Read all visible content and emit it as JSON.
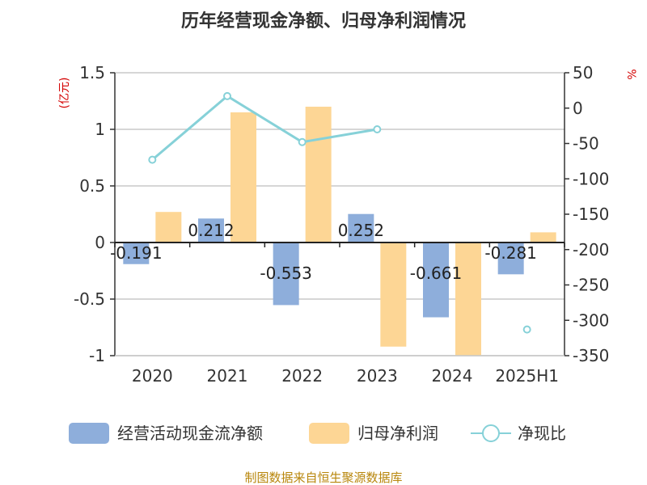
{
  "title": "历年经营现金净额、归母净利润情况",
  "source": "制图数据来自恒生聚源数据库",
  "chart_data": {
    "type": "bar",
    "categories": [
      "2020",
      "2021",
      "2022",
      "2023",
      "2024",
      "2025H1"
    ],
    "left_axis": {
      "unit": "(亿元)",
      "ylim": [
        -1,
        1.5
      ],
      "ticks": [
        "1.5",
        "1",
        "0.5",
        "0",
        "-0.5",
        "-1"
      ],
      "tick_values": [
        1.5,
        1,
        0.5,
        0,
        -0.5,
        -1
      ]
    },
    "right_axis": {
      "unit": "%",
      "ylim": [
        -350,
        50
      ],
      "ticks": [
        "50",
        "0",
        "-50",
        "-100",
        "-150",
        "-200",
        "-250",
        "-300",
        "-350"
      ],
      "tick_values": [
        50,
        0,
        -50,
        -100,
        -150,
        -200,
        -250,
        -300,
        -350
      ]
    },
    "series": [
      {
        "name": "经营活动现金流净额",
        "type": "bar",
        "axis": "left",
        "color": "#8eaedb",
        "values": [
          -0.191,
          0.212,
          -0.553,
          0.252,
          -0.661,
          -0.281
        ],
        "labels": [
          "-0.191",
          "0.212",
          "-0.553",
          "0.252",
          "-0.661",
          "-0.281"
        ]
      },
      {
        "name": "归母净利润",
        "type": "bar",
        "axis": "left",
        "color": "#fdd695",
        "values": [
          0.27,
          1.15,
          1.2,
          -0.92,
          -1.0,
          0.09
        ]
      },
      {
        "name": "净现比",
        "type": "line",
        "axis": "right",
        "color": "#86d1d8",
        "values": [
          -73,
          17,
          -48,
          -30,
          null,
          -313
        ]
      }
    ],
    "grid": true,
    "legend": "bottom"
  }
}
